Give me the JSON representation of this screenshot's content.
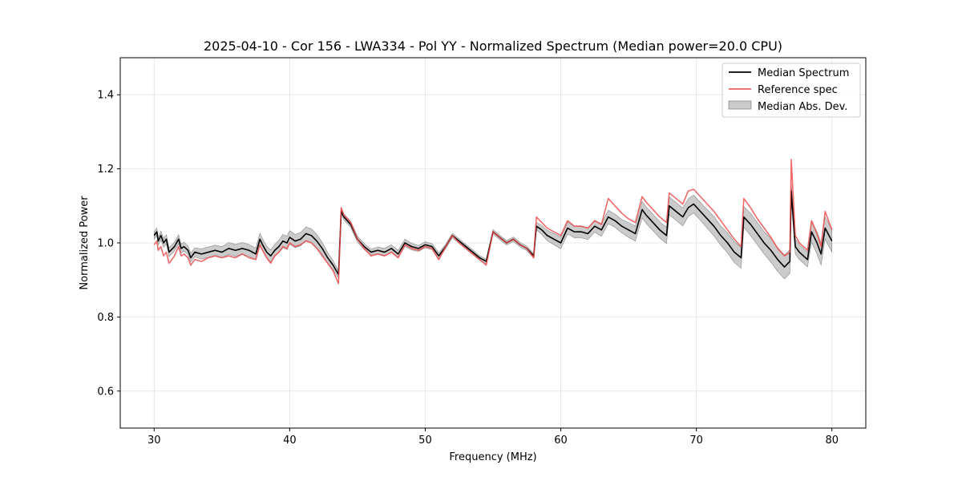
{
  "chart_data": {
    "type": "line",
    "title": "2025-04-10 - Cor 156 - LWA334 - Pol YY - Normalized Spectrum (Median power=20.0 CPU)",
    "xlabel": "Frequency (MHz)",
    "ylabel": "Normalized Power",
    "xlim": [
      27.5,
      82.5
    ],
    "ylim": [
      0.5,
      1.5
    ],
    "xticks": [
      30,
      40,
      50,
      60,
      70,
      80
    ],
    "yticks": [
      0.6,
      0.8,
      1.0,
      1.2,
      1.4
    ],
    "grid": true,
    "legend_position": "upper-right",
    "series": [
      {
        "name": "Median Spectrum",
        "color": "#000000",
        "x": [
          30.0,
          30.2,
          30.3,
          30.5,
          30.7,
          30.9,
          31.1,
          31.5,
          31.8,
          32.0,
          32.2,
          32.5,
          32.7,
          33.0,
          33.5,
          34.0,
          34.5,
          35.0,
          35.5,
          36.0,
          36.5,
          37.0,
          37.5,
          37.8,
          38.0,
          38.3,
          38.6,
          38.9,
          39.2,
          39.5,
          39.8,
          40.0,
          40.4,
          40.8,
          41.2,
          41.6,
          42.0,
          42.4,
          42.8,
          43.2,
          43.6,
          43.8,
          44.0,
          44.5,
          45.0,
          45.5,
          46.0,
          46.5,
          47.0,
          47.5,
          48.0,
          48.5,
          49.0,
          49.5,
          50.0,
          50.5,
          51.0,
          51.5,
          52.0,
          52.5,
          53.0,
          53.5,
          54.0,
          54.5,
          55.0,
          55.5,
          56.0,
          56.5,
          57.0,
          57.5,
          58.0,
          58.2,
          58.6,
          59.0,
          59.5,
          60.0,
          60.5,
          61.0,
          61.5,
          62.0,
          62.5,
          63.0,
          63.5,
          64.0,
          64.5,
          65.0,
          65.5,
          66.0,
          66.3,
          66.8,
          67.3,
          67.8,
          68.0,
          68.5,
          69.0,
          69.4,
          69.8,
          70.3,
          70.8,
          71.3,
          71.8,
          72.3,
          72.8,
          73.3,
          73.5,
          74.0,
          74.5,
          75.0,
          75.5,
          76.0,
          76.5,
          76.9,
          77.0,
          77.3,
          77.6,
          77.9,
          78.2,
          78.5,
          78.9,
          79.2,
          79.5,
          80.0
        ],
        "y": [
          1.02,
          1.03,
          1.005,
          1.02,
          1.0,
          1.01,
          0.975,
          0.99,
          1.01,
          0.985,
          0.99,
          0.98,
          0.96,
          0.975,
          0.97,
          0.975,
          0.98,
          0.975,
          0.985,
          0.98,
          0.985,
          0.98,
          0.97,
          1.01,
          0.995,
          0.975,
          0.965,
          0.98,
          0.99,
          1.005,
          1.0,
          1.015,
          1.005,
          1.01,
          1.025,
          1.02,
          1.005,
          0.985,
          0.96,
          0.94,
          0.915,
          1.085,
          1.07,
          1.05,
          1.01,
          0.99,
          0.975,
          0.98,
          0.975,
          0.985,
          0.97,
          1.0,
          0.99,
          0.985,
          0.995,
          0.99,
          0.965,
          0.99,
          1.02,
          1.005,
          0.99,
          0.975,
          0.96,
          0.95,
          1.03,
          1.015,
          1.0,
          1.01,
          0.995,
          0.985,
          0.965,
          1.045,
          1.035,
          1.02,
          1.01,
          1.0,
          1.04,
          1.03,
          1.03,
          1.025,
          1.045,
          1.035,
          1.07,
          1.06,
          1.045,
          1.035,
          1.025,
          1.09,
          1.075,
          1.055,
          1.035,
          1.02,
          1.1,
          1.085,
          1.07,
          1.095,
          1.105,
          1.085,
          1.065,
          1.045,
          1.02,
          1.0,
          0.975,
          0.96,
          1.07,
          1.05,
          1.025,
          1.0,
          0.98,
          0.955,
          0.935,
          0.95,
          1.14,
          0.99,
          0.975,
          0.965,
          0.955,
          1.03,
          1.0,
          0.97,
          1.04,
          1.005
        ]
      },
      {
        "name": "Reference spec",
        "color": "#ef4444",
        "x": [
          30.0,
          30.2,
          30.3,
          30.5,
          30.7,
          30.9,
          31.1,
          31.5,
          31.8,
          32.0,
          32.2,
          32.5,
          32.7,
          33.0,
          33.5,
          34.0,
          34.5,
          35.0,
          35.5,
          36.0,
          36.5,
          37.0,
          37.5,
          37.8,
          38.0,
          38.3,
          38.6,
          38.9,
          39.2,
          39.5,
          39.8,
          40.0,
          40.4,
          40.8,
          41.2,
          41.6,
          42.0,
          42.4,
          42.8,
          43.2,
          43.6,
          43.8,
          44.0,
          44.5,
          45.0,
          45.5,
          46.0,
          46.5,
          47.0,
          47.5,
          48.0,
          48.5,
          49.0,
          49.5,
          50.0,
          50.5,
          51.0,
          51.5,
          52.0,
          52.5,
          53.0,
          53.5,
          54.0,
          54.5,
          55.0,
          55.5,
          56.0,
          56.5,
          57.0,
          57.5,
          58.0,
          58.2,
          58.6,
          59.0,
          59.5,
          60.0,
          60.5,
          61.0,
          61.5,
          62.0,
          62.5,
          63.0,
          63.5,
          64.0,
          64.5,
          65.0,
          65.5,
          66.0,
          66.3,
          66.8,
          67.3,
          67.8,
          68.0,
          68.5,
          69.0,
          69.4,
          69.8,
          70.3,
          70.8,
          71.3,
          71.8,
          72.3,
          72.8,
          73.3,
          73.5,
          74.0,
          74.5,
          75.0,
          75.5,
          76.0,
          76.5,
          76.9,
          77.0,
          77.3,
          77.6,
          77.9,
          78.2,
          78.5,
          78.9,
          79.2,
          79.5,
          80.0
        ],
        "y": [
          0.995,
          1.005,
          0.98,
          0.99,
          0.965,
          0.975,
          0.945,
          0.965,
          0.99,
          0.965,
          0.97,
          0.96,
          0.94,
          0.955,
          0.95,
          0.96,
          0.965,
          0.96,
          0.965,
          0.96,
          0.97,
          0.96,
          0.955,
          0.995,
          0.98,
          0.96,
          0.945,
          0.965,
          0.975,
          0.99,
          0.985,
          1.0,
          0.99,
          0.995,
          1.005,
          1.0,
          0.985,
          0.965,
          0.945,
          0.925,
          0.89,
          1.095,
          1.075,
          1.055,
          1.01,
          0.985,
          0.965,
          0.97,
          0.965,
          0.975,
          0.96,
          0.995,
          0.985,
          0.98,
          0.99,
          0.985,
          0.955,
          0.99,
          1.02,
          1.0,
          0.985,
          0.97,
          0.955,
          0.94,
          1.03,
          1.015,
          1.0,
          1.01,
          0.995,
          0.985,
          0.96,
          1.07,
          1.055,
          1.04,
          1.03,
          1.02,
          1.06,
          1.045,
          1.045,
          1.04,
          1.06,
          1.05,
          1.12,
          1.1,
          1.08,
          1.065,
          1.055,
          1.125,
          1.11,
          1.09,
          1.07,
          1.055,
          1.135,
          1.12,
          1.105,
          1.14,
          1.145,
          1.125,
          1.105,
          1.085,
          1.06,
          1.035,
          1.01,
          0.99,
          1.12,
          1.095,
          1.065,
          1.04,
          1.015,
          0.985,
          0.965,
          0.975,
          1.225,
          1.02,
          1.0,
          0.99,
          0.98,
          1.06,
          1.025,
          0.99,
          1.085,
          1.035
        ]
      }
    ],
    "band": {
      "name": "Median Abs. Dev.",
      "color": "#a9a9a9",
      "half_width": [
        0.01,
        0.01,
        0.01,
        0.012,
        0.012,
        0.012,
        0.012,
        0.012,
        0.012,
        0.012,
        0.012,
        0.012,
        0.012,
        0.012,
        0.014,
        0.014,
        0.014,
        0.015,
        0.016,
        0.016,
        0.016,
        0.016,
        0.016,
        0.016,
        0.016,
        0.016,
        0.016,
        0.016,
        0.017,
        0.018,
        0.018,
        0.018,
        0.018,
        0.018,
        0.018,
        0.018,
        0.018,
        0.016,
        0.014,
        0.012,
        0.01,
        0.008,
        0.008,
        0.008,
        0.008,
        0.008,
        0.008,
        0.009,
        0.01,
        0.01,
        0.01,
        0.01,
        0.009,
        0.008,
        0.008,
        0.008,
        0.008,
        0.006,
        0.006,
        0.006,
        0.006,
        0.006,
        0.006,
        0.006,
        0.006,
        0.006,
        0.006,
        0.006,
        0.006,
        0.006,
        0.006,
        0.01,
        0.012,
        0.014,
        0.015,
        0.016,
        0.016,
        0.016,
        0.016,
        0.016,
        0.016,
        0.017,
        0.018,
        0.018,
        0.018,
        0.02,
        0.02,
        0.022,
        0.022,
        0.022,
        0.022,
        0.022,
        0.024,
        0.024,
        0.024,
        0.024,
        0.024,
        0.024,
        0.025,
        0.026,
        0.026,
        0.027,
        0.028,
        0.028,
        0.028,
        0.03,
        0.03,
        0.03,
        0.032,
        0.032,
        0.032,
        0.032,
        0.02,
        0.02,
        0.02,
        0.02,
        0.02,
        0.028,
        0.03,
        0.03,
        0.03,
        0.03
      ]
    }
  }
}
